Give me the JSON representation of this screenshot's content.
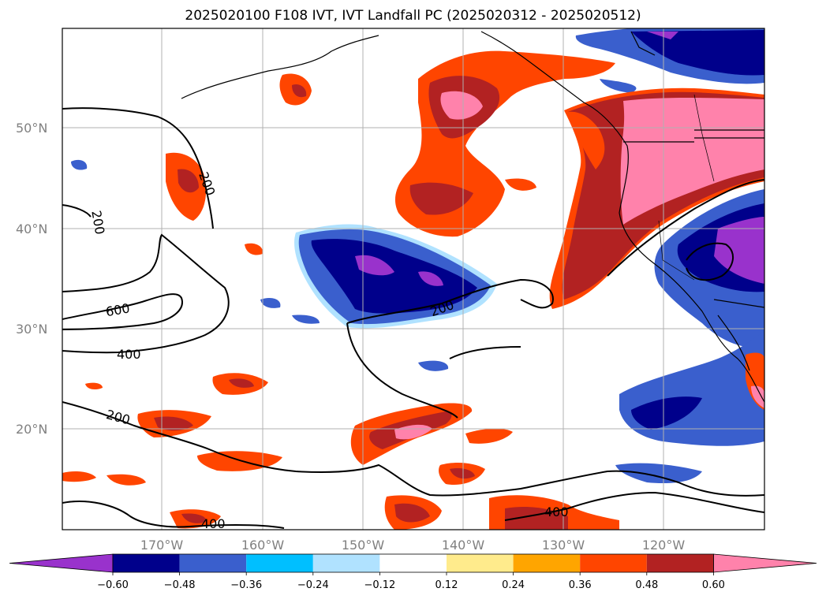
{
  "title": "2025020100 F108 IVT, IVT Landfall PC (2025020312 - 2025020512)",
  "lat_labels": [
    "50°N",
    "40°N",
    "30°N",
    "20°N"
  ],
  "lon_labels": [
    "170°W",
    "160°W",
    "150°W",
    "140°W",
    "130°W",
    "120°W"
  ],
  "contour_labels": [
    "200",
    "200",
    "600",
    "400",
    "200",
    "200",
    "400",
    "400"
  ],
  "colorbar": {
    "tick_labels": [
      "−0.60",
      "−0.48",
      "−0.36",
      "−0.24",
      "−0.12",
      "0.12",
      "0.24",
      "0.36",
      "0.48",
      "0.60"
    ],
    "colors": [
      "#9932cc",
      "#00008b",
      "#3a5fcd",
      "#00bfff",
      "#b0e2ff",
      "#ffffff",
      "#ffeb8c",
      "#ffa500",
      "#ff4500",
      "#b22222",
      "#ff82ab"
    ]
  }
}
